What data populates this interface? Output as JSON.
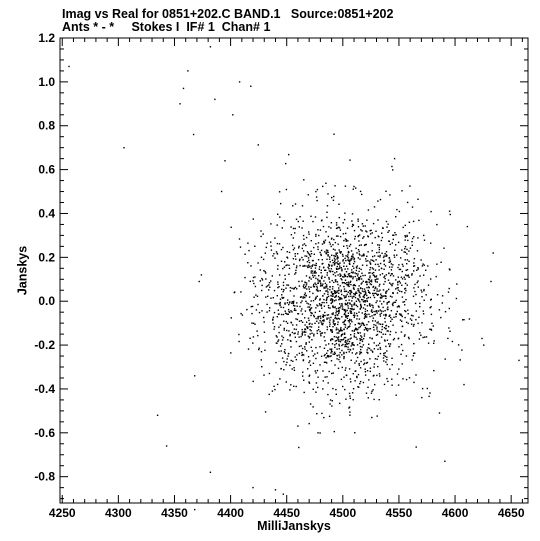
{
  "header": {
    "line1": "Imag vs Real for 0851+202.C BAND.1   Source:0851+202",
    "line2": "Ants * - *     Stokes I  IF# 1  Chan# 1"
  },
  "chart_data": {
    "type": "scatter",
    "xlabel": "MilliJanskys",
    "ylabel": "Janskys",
    "xlim": [
      4248,
      4665
    ],
    "ylim": [
      -0.92,
      1.2
    ],
    "x_ticks": [
      4250,
      4300,
      4350,
      4400,
      4450,
      4500,
      4550,
      4600,
      4650
    ],
    "y_ticks": [
      -0.8,
      -0.6,
      -0.4,
      -0.2,
      0.0,
      0.2,
      0.4,
      0.6,
      0.8,
      1.0,
      1.2
    ],
    "y_tick_labels": [
      "-0.8",
      "-0.6",
      "-0.4",
      "-0.2",
      "0.0",
      "0.2",
      "0.4",
      "0.6",
      "0.8",
      "1.0",
      "1.2"
    ],
    "grid": false,
    "marker_color": "#000000",
    "cluster_center": [
      4500,
      0.0
    ],
    "cluster_std": [
      38,
      0.2
    ],
    "cluster_count": 2200,
    "outliers": [
      [
        4256,
        1.07
      ],
      [
        4305,
        0.7
      ],
      [
        4358,
        0.97
      ],
      [
        4362,
        1.05
      ],
      [
        4382,
        1.16
      ],
      [
        4355,
        0.9
      ],
      [
        4367,
        0.76
      ],
      [
        4386,
        0.92
      ],
      [
        4395,
        0.64
      ],
      [
        4392,
        0.5
      ],
      [
        4402,
        0.85
      ],
      [
        4408,
        1.0
      ],
      [
        4418,
        0.98
      ],
      [
        4335,
        -0.52
      ],
      [
        4343,
        -0.66
      ],
      [
        4368,
        -0.34
      ],
      [
        4372,
        0.09
      ],
      [
        4374,
        0.12
      ],
      [
        4382,
        -0.78
      ],
      [
        4368,
        -0.95
      ],
      [
        4420,
        -0.85
      ],
      [
        4440,
        -0.86
      ],
      [
        4447,
        -0.88
      ],
      [
        4634,
        0.22
      ],
      [
        4632,
        0.09
      ],
      [
        4657,
        -0.27
      ],
      [
        4608,
        -0.38
      ],
      [
        4591,
        -0.73
      ],
      [
        4611,
        0.34
      ],
      [
        4624,
        -0.17
      ]
    ]
  }
}
